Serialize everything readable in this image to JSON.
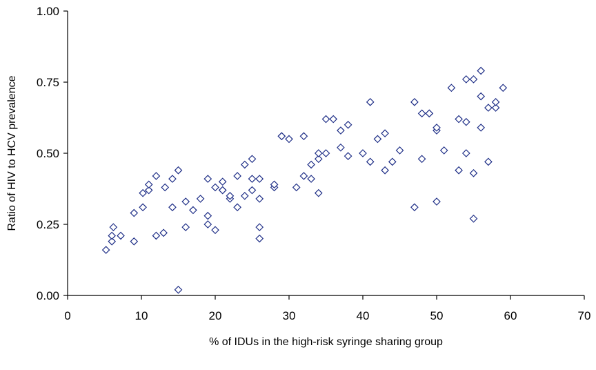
{
  "chart_data": {
    "type": "scatter",
    "title": "",
    "xlabel": "% of IDUs in the high-risk syringe sharing group",
    "ylabel": "Ratio of HIV to HCV prevalence",
    "xlim": [
      0,
      70
    ],
    "ylim": [
      0,
      1.0
    ],
    "x_ticks": [
      "0",
      "10",
      "20",
      "30",
      "40",
      "50",
      "60",
      "70"
    ],
    "y_ticks": [
      "0.00",
      "0.25",
      "0.50",
      "0.75",
      "1.00"
    ],
    "grid": false,
    "legend": "none",
    "marker": "diamond",
    "marker_color": "#1f2f87",
    "points": [
      [
        5.2,
        0.16
      ],
      [
        6,
        0.19
      ],
      [
        6,
        0.21
      ],
      [
        6.2,
        0.24
      ],
      [
        7.2,
        0.21
      ],
      [
        9,
        0.19
      ],
      [
        9,
        0.29
      ],
      [
        10.2,
        0.31
      ],
      [
        10.2,
        0.36
      ],
      [
        11,
        0.37
      ],
      [
        11,
        0.39
      ],
      [
        12,
        0.21
      ],
      [
        12,
        0.42
      ],
      [
        13,
        0.22
      ],
      [
        13.2,
        0.38
      ],
      [
        14.2,
        0.41
      ],
      [
        14.2,
        0.31
      ],
      [
        15,
        0.44
      ],
      [
        15,
        0.02
      ],
      [
        16,
        0.24
      ],
      [
        16,
        0.33
      ],
      [
        17,
        0.3
      ],
      [
        18,
        0.34
      ],
      [
        19,
        0.25
      ],
      [
        19,
        0.28
      ],
      [
        19,
        0.41
      ],
      [
        20,
        0.23
      ],
      [
        20,
        0.38
      ],
      [
        21,
        0.37
      ],
      [
        21,
        0.37
      ],
      [
        21,
        0.4
      ],
      [
        22,
        0.34
      ],
      [
        22,
        0.35
      ],
      [
        23,
        0.31
      ],
      [
        23,
        0.42
      ],
      [
        24,
        0.35
      ],
      [
        24,
        0.46
      ],
      [
        25,
        0.37
      ],
      [
        25,
        0.41
      ],
      [
        25,
        0.48
      ],
      [
        26,
        0.2
      ],
      [
        26,
        0.24
      ],
      [
        26,
        0.34
      ],
      [
        26,
        0.41
      ],
      [
        28,
        0.38
      ],
      [
        28,
        0.39
      ],
      [
        29,
        0.56
      ],
      [
        29,
        0.56
      ],
      [
        30,
        0.55
      ],
      [
        31,
        0.38
      ],
      [
        32,
        0.42
      ],
      [
        32,
        0.56
      ],
      [
        33,
        0.41
      ],
      [
        33,
        0.46
      ],
      [
        34,
        0.36
      ],
      [
        34,
        0.48
      ],
      [
        34,
        0.5
      ],
      [
        35,
        0.5
      ],
      [
        35,
        0.62
      ],
      [
        36,
        0.62
      ],
      [
        37,
        0.52
      ],
      [
        37,
        0.58
      ],
      [
        38,
        0.49
      ],
      [
        38,
        0.6
      ],
      [
        40,
        0.5
      ],
      [
        41,
        0.47
      ],
      [
        41,
        0.68
      ],
      [
        42,
        0.55
      ],
      [
        43,
        0.44
      ],
      [
        43,
        0.57
      ],
      [
        44,
        0.47
      ],
      [
        45,
        0.51
      ],
      [
        47,
        0.31
      ],
      [
        47,
        0.68
      ],
      [
        48,
        0.48
      ],
      [
        48,
        0.64
      ],
      [
        49,
        0.64
      ],
      [
        49,
        0.64
      ],
      [
        50,
        0.33
      ],
      [
        50,
        0.58
      ],
      [
        50,
        0.59
      ],
      [
        51,
        0.51
      ],
      [
        52,
        0.73
      ],
      [
        53,
        0.44
      ],
      [
        53,
        0.62
      ],
      [
        54,
        0.5
      ],
      [
        54,
        0.61
      ],
      [
        54,
        0.76
      ],
      [
        55,
        0.27
      ],
      [
        55,
        0.43
      ],
      [
        55,
        0.76
      ],
      [
        56,
        0.59
      ],
      [
        56,
        0.7
      ],
      [
        56,
        0.79
      ],
      [
        57,
        0.47
      ],
      [
        57,
        0.66
      ],
      [
        58,
        0.66
      ],
      [
        58,
        0.68
      ],
      [
        59,
        0.73
      ]
    ]
  }
}
